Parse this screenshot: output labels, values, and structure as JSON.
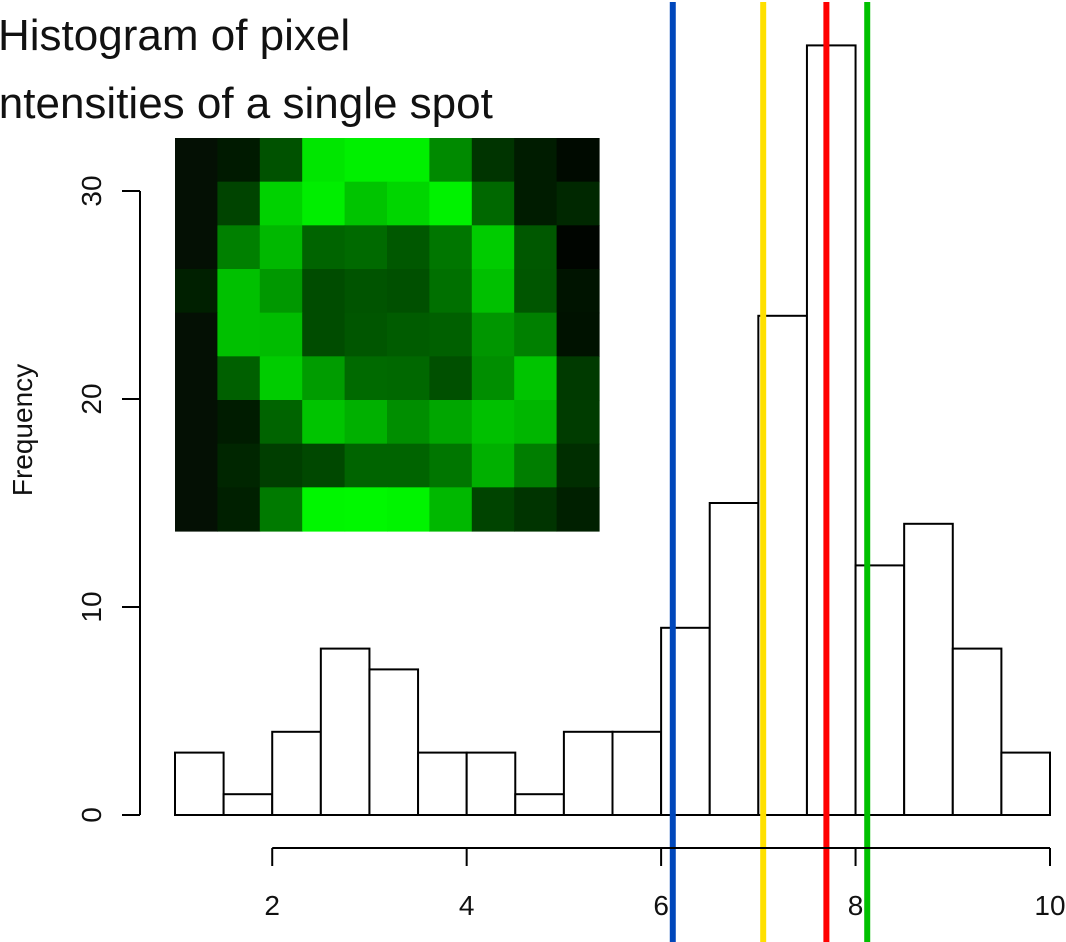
{
  "chart_data": {
    "type": "bar",
    "title_lines": [
      "Histogram of pixel",
      "intensities of a single spot"
    ],
    "ylabel": "Frequency",
    "xlabel": "",
    "bin_width": 0.5,
    "bins": [
      {
        "x0": 1.0,
        "x1": 1.5,
        "count": 3
      },
      {
        "x0": 1.5,
        "x1": 2.0,
        "count": 1
      },
      {
        "x0": 2.0,
        "x1": 2.5,
        "count": 4
      },
      {
        "x0": 2.5,
        "x1": 3.0,
        "count": 8
      },
      {
        "x0": 3.0,
        "x1": 3.5,
        "count": 7
      },
      {
        "x0": 3.5,
        "x1": 4.0,
        "count": 3
      },
      {
        "x0": 4.0,
        "x1": 4.5,
        "count": 3
      },
      {
        "x0": 4.5,
        "x1": 5.0,
        "count": 1
      },
      {
        "x0": 5.0,
        "x1": 5.5,
        "count": 4
      },
      {
        "x0": 5.5,
        "x1": 6.0,
        "count": 4
      },
      {
        "x0": 6.0,
        "x1": 6.5,
        "count": 9
      },
      {
        "x0": 6.5,
        "x1": 7.0,
        "count": 15
      },
      {
        "x0": 7.0,
        "x1": 7.5,
        "count": 24
      },
      {
        "x0": 7.5,
        "x1": 8.0,
        "count": 37
      },
      {
        "x0": 8.0,
        "x1": 8.5,
        "count": 12
      },
      {
        "x0": 8.5,
        "x1": 9.0,
        "count": 14
      },
      {
        "x0": 9.0,
        "x1": 9.5,
        "count": 8
      },
      {
        "x0": 9.5,
        "x1": 10.0,
        "count": 3
      }
    ],
    "x_ticks": [
      2,
      4,
      6,
      8,
      10
    ],
    "x_tick_labels": [
      "2",
      "4",
      "6",
      "8",
      "10"
    ],
    "y_ticks": [
      0,
      10,
      20,
      30
    ],
    "y_tick_labels": [
      "0",
      "10",
      "20",
      "30"
    ],
    "xlim": [
      1,
      10
    ],
    "ylim": [
      0,
      37
    ],
    "reference_lines": [
      {
        "x": 6.12,
        "color": "#0047bb"
      },
      {
        "x": 7.05,
        "color": "#ffe000"
      },
      {
        "x": 7.7,
        "color": "#ff0000"
      },
      {
        "x": 8.12,
        "color": "#00c000"
      }
    ],
    "inset_image": {
      "description": "spot-pixel-grid",
      "rows": 9,
      "cols": 10,
      "pixels": [
        [
          "#041004",
          "#001a00",
          "#005200",
          "#00e600",
          "#00f000",
          "#00f000",
          "#008a00",
          "#003400",
          "#001c00",
          "#000a00"
        ],
        [
          "#041004",
          "#004400",
          "#00d200",
          "#00ee00",
          "#00c400",
          "#00d600",
          "#00f200",
          "#006800",
          "#001c00",
          "#002800"
        ],
        [
          "#041004",
          "#008000",
          "#00b800",
          "#006400",
          "#006a00",
          "#005800",
          "#007600",
          "#00cc00",
          "#005800",
          "#000500"
        ],
        [
          "#002000",
          "#00c000",
          "#009800",
          "#004c00",
          "#005400",
          "#005000",
          "#007000",
          "#00c000",
          "#005600",
          "#001400"
        ],
        [
          "#041004",
          "#00c000",
          "#00bc00",
          "#004c00",
          "#005600",
          "#005c00",
          "#006000",
          "#009600",
          "#008000",
          "#001200"
        ],
        [
          "#041004",
          "#006000",
          "#00cc00",
          "#009c00",
          "#006a00",
          "#006800",
          "#005000",
          "#008e00",
          "#00c400",
          "#003a00"
        ],
        [
          "#041004",
          "#001c00",
          "#006400",
          "#00c400",
          "#00b000",
          "#008e00",
          "#00a600",
          "#00c000",
          "#00b600",
          "#003c00"
        ],
        [
          "#041004",
          "#002600",
          "#003e00",
          "#004800",
          "#006400",
          "#006400",
          "#007600",
          "#00b000",
          "#007e00",
          "#002e00"
        ],
        [
          "#041004",
          "#002000",
          "#007a00",
          "#00f600",
          "#00f800",
          "#00f400",
          "#00b800",
          "#004400",
          "#003400",
          "#002000"
        ]
      ]
    }
  }
}
